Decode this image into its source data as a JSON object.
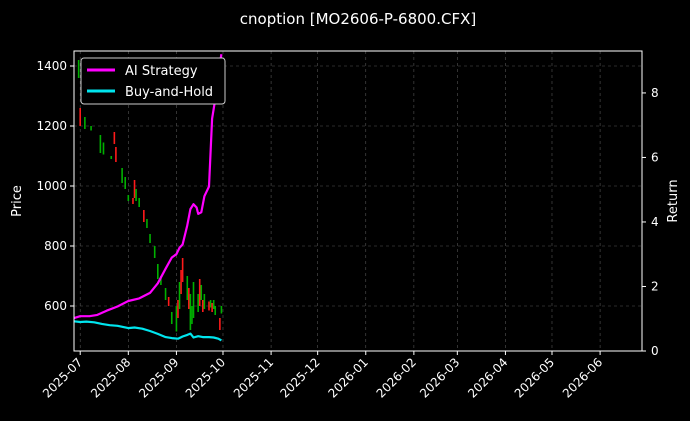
{
  "chart_data": {
    "type": "line",
    "title": "cnoption [MO2606-P-6800.CFX]",
    "ylabel_left": "Price",
    "ylabel_right": "Return",
    "x_range": [
      "2025-06-27",
      "2026-06-28"
    ],
    "ylim_left": [
      450,
      1450
    ],
    "ylim_right": [
      0,
      9.3
    ],
    "x_ticks": [
      "2025-07",
      "2025-08",
      "2025-09",
      "2025-10",
      "2025-11",
      "2025-12",
      "2026-01",
      "2026-02",
      "2026-03",
      "2026-04",
      "2026-05",
      "2026-06"
    ],
    "y_ticks_left": [
      600,
      800,
      1000,
      1200,
      1400
    ],
    "y_ticks_right": [
      0,
      2,
      4,
      6,
      8
    ],
    "grid": true,
    "legend_position": "top-left",
    "colors": {
      "up": "#00b000",
      "down": "#ff1a1a",
      "ai": "#ff00ff",
      "bh": "#00e5ee"
    },
    "candles": [
      {
        "date": "2025-06-30",
        "high": 1420,
        "low": 1360,
        "up": true
      },
      {
        "date": "2025-07-01",
        "high": 1260,
        "low": 1200,
        "up": false
      },
      {
        "date": "2025-07-04",
        "high": 1230,
        "low": 1190,
        "up": true
      },
      {
        "date": "2025-07-08",
        "high": 1200,
        "low": 1185,
        "up": true
      },
      {
        "date": "2025-07-14",
        "high": 1170,
        "low": 1110,
        "up": true
      },
      {
        "date": "2025-07-16",
        "high": 1145,
        "low": 1105,
        "up": true
      },
      {
        "date": "2025-07-21",
        "high": 1100,
        "low": 1090,
        "up": true
      },
      {
        "date": "2025-07-23",
        "high": 1180,
        "low": 1140,
        "up": false
      },
      {
        "date": "2025-07-24",
        "high": 1130,
        "low": 1080,
        "up": false
      },
      {
        "date": "2025-07-28",
        "high": 1060,
        "low": 1010,
        "up": true
      },
      {
        "date": "2025-07-30",
        "high": 1030,
        "low": 990,
        "up": true
      },
      {
        "date": "2025-08-01",
        "high": 970,
        "low": 950,
        "up": true
      },
      {
        "date": "2025-08-04",
        "high": 960,
        "low": 940,
        "up": false
      },
      {
        "date": "2025-08-05",
        "high": 1020,
        "low": 960,
        "up": false
      },
      {
        "date": "2025-08-06",
        "high": 990,
        "low": 950,
        "up": true
      },
      {
        "date": "2025-08-08",
        "high": 960,
        "low": 930,
        "up": true
      },
      {
        "date": "2025-08-11",
        "high": 920,
        "low": 880,
        "up": false
      },
      {
        "date": "2025-08-13",
        "high": 890,
        "low": 860,
        "up": true
      },
      {
        "date": "2025-08-15",
        "high": 840,
        "low": 810,
        "up": true
      },
      {
        "date": "2025-08-18",
        "high": 800,
        "low": 760,
        "up": true
      },
      {
        "date": "2025-08-20",
        "high": 740,
        "low": 690,
        "up": true
      },
      {
        "date": "2025-08-22",
        "high": 700,
        "low": 670,
        "up": true
      },
      {
        "date": "2025-08-25",
        "high": 660,
        "low": 620,
        "up": true
      },
      {
        "date": "2025-08-27",
        "high": 630,
        "low": 600,
        "up": false
      },
      {
        "date": "2025-08-29",
        "high": 580,
        "low": 540,
        "up": true
      },
      {
        "date": "2025-09-01",
        "high": 600,
        "low": 515,
        "up": true
      },
      {
        "date": "2025-09-02",
        "high": 620,
        "low": 560,
        "up": false
      },
      {
        "date": "2025-09-03",
        "high": 680,
        "low": 590,
        "up": true
      },
      {
        "date": "2025-09-04",
        "high": 720,
        "low": 640,
        "up": false
      },
      {
        "date": "2025-09-05",
        "high": 760,
        "low": 680,
        "up": false
      },
      {
        "date": "2025-09-08",
        "high": 700,
        "low": 620,
        "up": true
      },
      {
        "date": "2025-09-09",
        "high": 660,
        "low": 590,
        "up": false
      },
      {
        "date": "2025-09-10",
        "high": 640,
        "low": 520,
        "up": true
      },
      {
        "date": "2025-09-11",
        "high": 600,
        "low": 540,
        "up": true
      },
      {
        "date": "2025-09-12",
        "high": 680,
        "low": 560,
        "up": true
      },
      {
        "date": "2025-09-15",
        "high": 640,
        "low": 580,
        "up": true
      },
      {
        "date": "2025-09-16",
        "high": 690,
        "low": 600,
        "up": false
      },
      {
        "date": "2025-09-17",
        "high": 670,
        "low": 620,
        "up": true
      },
      {
        "date": "2025-09-18",
        "high": 620,
        "low": 580,
        "up": false
      },
      {
        "date": "2025-09-19",
        "high": 640,
        "low": 590,
        "up": true
      },
      {
        "date": "2025-09-22",
        "high": 615,
        "low": 585,
        "up": false
      },
      {
        "date": "2025-09-23",
        "high": 620,
        "low": 595,
        "up": true
      },
      {
        "date": "2025-09-24",
        "high": 610,
        "low": 580,
        "up": false
      },
      {
        "date": "2025-09-25",
        "high": 620,
        "low": 590,
        "up": true
      },
      {
        "date": "2025-09-26",
        "high": 600,
        "low": 570,
        "up": true
      },
      {
        "date": "2025-09-29",
        "high": 560,
        "low": 520,
        "up": false
      },
      {
        "date": "2025-09-30",
        "high": 600,
        "low": 575,
        "up": true
      }
    ],
    "series": [
      {
        "name": "AI Strategy",
        "axis": "right",
        "color": "#ff00ff",
        "points": [
          [
            "2025-06-27",
            1.02
          ],
          [
            "2025-07-01",
            1.08
          ],
          [
            "2025-07-07",
            1.08
          ],
          [
            "2025-07-12",
            1.12
          ],
          [
            "2025-07-18",
            1.25
          ],
          [
            "2025-07-25",
            1.38
          ],
          [
            "2025-08-01",
            1.55
          ],
          [
            "2025-08-08",
            1.63
          ],
          [
            "2025-08-15",
            1.8
          ],
          [
            "2025-08-20",
            2.1
          ],
          [
            "2025-08-25",
            2.55
          ],
          [
            "2025-08-29",
            2.9
          ],
          [
            "2025-09-01",
            3.0
          ],
          [
            "2025-09-03",
            3.2
          ],
          [
            "2025-09-05",
            3.3
          ],
          [
            "2025-09-08",
            3.9
          ],
          [
            "2025-09-10",
            4.4
          ],
          [
            "2025-09-12",
            4.55
          ],
          [
            "2025-09-14",
            4.45
          ],
          [
            "2025-09-15",
            4.25
          ],
          [
            "2025-09-17",
            4.3
          ],
          [
            "2025-09-19",
            4.8
          ],
          [
            "2025-09-22",
            5.1
          ],
          [
            "2025-09-24",
            7.2
          ],
          [
            "2025-09-26",
            7.8
          ],
          [
            "2025-09-28",
            8.6
          ],
          [
            "2025-09-30",
            9.2
          ]
        ]
      },
      {
        "name": "Buy-and-Hold",
        "axis": "right",
        "color": "#00e5ee",
        "points": [
          [
            "2025-06-27",
            0.92
          ],
          [
            "2025-07-01",
            0.9
          ],
          [
            "2025-07-05",
            0.91
          ],
          [
            "2025-07-10",
            0.89
          ],
          [
            "2025-07-15",
            0.84
          ],
          [
            "2025-07-20",
            0.8
          ],
          [
            "2025-07-25",
            0.78
          ],
          [
            "2025-08-01",
            0.71
          ],
          [
            "2025-08-05",
            0.73
          ],
          [
            "2025-08-10",
            0.69
          ],
          [
            "2025-08-15",
            0.62
          ],
          [
            "2025-08-20",
            0.53
          ],
          [
            "2025-08-25",
            0.43
          ],
          [
            "2025-08-29",
            0.4
          ],
          [
            "2025-09-02",
            0.38
          ],
          [
            "2025-09-05",
            0.45
          ],
          [
            "2025-09-08",
            0.5
          ],
          [
            "2025-09-10",
            0.54
          ],
          [
            "2025-09-12",
            0.42
          ],
          [
            "2025-09-15",
            0.46
          ],
          [
            "2025-09-18",
            0.43
          ],
          [
            "2025-09-22",
            0.43
          ],
          [
            "2025-09-25",
            0.42
          ],
          [
            "2025-09-28",
            0.38
          ],
          [
            "2025-09-30",
            0.33
          ]
        ]
      }
    ]
  }
}
